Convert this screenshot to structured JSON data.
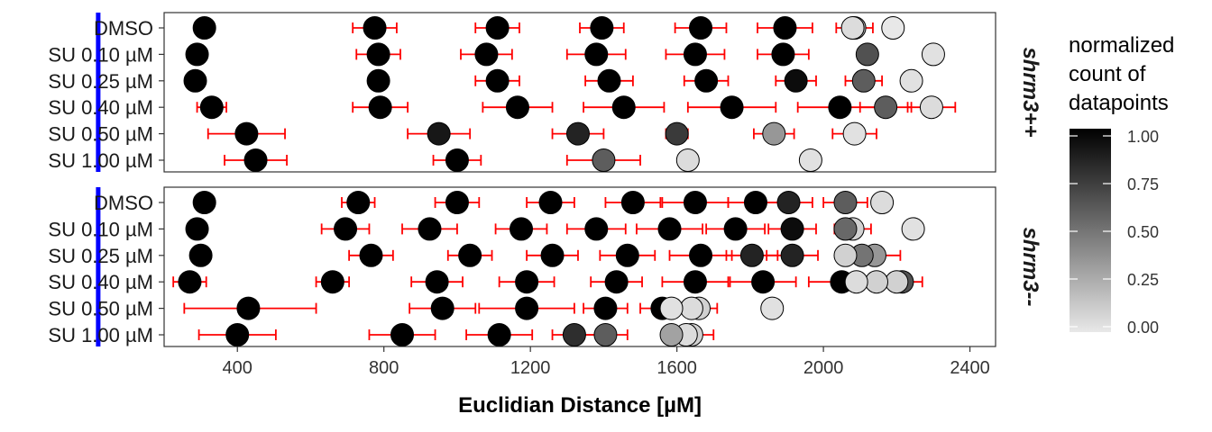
{
  "chart_data": {
    "type": "scatter",
    "xlabel": "Euclidian Distance [µM]",
    "xlim": [
      200,
      2470
    ],
    "xticks": [
      400,
      800,
      1200,
      1600,
      2000,
      2400
    ],
    "reference_line_x": 20,
    "reference_line_color": "#0000ff",
    "errorbar_color": "#ff0000",
    "categories": [
      "DMSO",
      "SU 0.10 µM",
      "SU 0.25 µM",
      "SU 0.40 µM",
      "SU 0.50 µM",
      "SU 1.00 µM"
    ],
    "legend": {
      "title_lines": [
        "normalized",
        "count of",
        "datapoints"
      ],
      "ticks": [
        "1.00",
        "0.75",
        "0.50",
        "0.25",
        "0.00"
      ],
      "tick_values": [
        1.0,
        0.75,
        0.5,
        0.25,
        0.0
      ],
      "color_low": "#e8e8e8",
      "color_high": "#000000"
    },
    "panels": [
      {
        "strip": "shrm3++",
        "rows": [
          {
            "category": "DMSO",
            "points": [
              {
                "x": 310,
                "c": 1.0
              },
              {
                "x": 775,
                "c": 1.0,
                "err": [
                  715,
                  835
                ]
              },
              {
                "x": 1110,
                "c": 1.0,
                "err": [
                  1050,
                  1170
                ]
              },
              {
                "x": 1395,
                "c": 1.0,
                "err": [
                  1335,
                  1455
                ]
              },
              {
                "x": 1665,
                "c": 1.0,
                "err": [
                  1595,
                  1735
                ]
              },
              {
                "x": 1895,
                "c": 1.0,
                "err": [
                  1820,
                  1970
                ]
              },
              {
                "x": 2085,
                "c": 0.25,
                "err": [
                  2035,
                  2135
                ]
              },
              {
                "x": 2080,
                "c": 0.05
              },
              {
                "x": 2190,
                "c": 0.0
              }
            ]
          },
          {
            "category": "SU 0.10 µM",
            "points": [
              {
                "x": 290,
                "c": 1.0
              },
              {
                "x": 785,
                "c": 1.0,
                "err": [
                  725,
                  845
                ]
              },
              {
                "x": 1080,
                "c": 1.0,
                "err": [
                  1010,
                  1150
                ]
              },
              {
                "x": 1380,
                "c": 1.0,
                "err": [
                  1300,
                  1460
                ]
              },
              {
                "x": 1650,
                "c": 1.0,
                "err": [
                  1570,
                  1730
                ]
              },
              {
                "x": 1890,
                "c": 1.0,
                "err": [
                  1820,
                  1960
                ]
              },
              {
                "x": 2120,
                "c": 0.65
              },
              {
                "x": 2300,
                "c": 0.03
              }
            ]
          },
          {
            "category": "SU 0.25 µM",
            "points": [
              {
                "x": 285,
                "c": 1.0
              },
              {
                "x": 785,
                "c": 1.0
              },
              {
                "x": 1110,
                "c": 1.0,
                "err": [
                  1050,
                  1170
                ]
              },
              {
                "x": 1415,
                "c": 1.0,
                "err": [
                  1350,
                  1480
                ]
              },
              {
                "x": 1680,
                "c": 1.0,
                "err": [
                  1620,
                  1740
                ]
              },
              {
                "x": 1925,
                "c": 0.95,
                "err": [
                  1870,
                  1980
                ]
              },
              {
                "x": 2110,
                "c": 0.6,
                "err": [
                  2060,
                  2160
                ]
              },
              {
                "x": 2240,
                "c": 0.03
              }
            ]
          },
          {
            "category": "SU 0.40 µM",
            "points": [
              {
                "x": 330,
                "c": 1.0,
                "err": [
                  290,
                  370
                ]
              },
              {
                "x": 790,
                "c": 1.0,
                "err": [
                  715,
                  865
                ]
              },
              {
                "x": 1165,
                "c": 1.0,
                "err": [
                  1070,
                  1260
                ]
              },
              {
                "x": 1455,
                "c": 1.0,
                "err": [
                  1345,
                  1565
                ]
              },
              {
                "x": 1750,
                "c": 1.0,
                "err": [
                  1630,
                  1870
                ]
              },
              {
                "x": 2045,
                "c": 1.0,
                "err": [
                  1930,
                  2160
                ]
              },
              {
                "x": 2170,
                "c": 0.6,
                "err": [
                  2100,
                  2240
                ]
              },
              {
                "x": 2295,
                "c": 0.05,
                "err": [
                  2230,
                  2360
                ]
              }
            ]
          },
          {
            "category": "SU 0.50 µM",
            "points": [
              {
                "x": 425,
                "c": 1.0,
                "err": [
                  320,
                  530
                ]
              },
              {
                "x": 950,
                "c": 0.9,
                "err": [
                  865,
                  1035
                ]
              },
              {
                "x": 1330,
                "c": 0.85,
                "err": [
                  1260,
                  1400
                ]
              },
              {
                "x": 1600,
                "c": 0.75,
                "err": [
                  1570,
                  1630
                ]
              },
              {
                "x": 1865,
                "c": 0.35,
                "err": [
                  1810,
                  1920
                ]
              },
              {
                "x": 2085,
                "c": 0.03,
                "err": [
                  2025,
                  2145
                ]
              }
            ]
          },
          {
            "category": "SU 1.00 µM",
            "points": [
              {
                "x": 450,
                "c": 1.0,
                "err": [
                  365,
                  535
                ]
              },
              {
                "x": 1000,
                "c": 1.0,
                "err": [
                  935,
                  1065
                ]
              },
              {
                "x": 1400,
                "c": 0.6,
                "err": [
                  1300,
                  1500
                ]
              },
              {
                "x": 1630,
                "c": 0.05
              },
              {
                "x": 1965,
                "c": 0.03
              }
            ]
          }
        ]
      },
      {
        "strip": "shrm3--",
        "rows": [
          {
            "category": "DMSO",
            "points": [
              {
                "x": 310,
                "c": 1.0
              },
              {
                "x": 730,
                "c": 1.0,
                "err": [
                  685,
                  775
                ]
              },
              {
                "x": 1000,
                "c": 1.0,
                "err": [
                  940,
                  1060
                ]
              },
              {
                "x": 1255,
                "c": 1.0,
                "err": [
                  1190,
                  1320
                ]
              },
              {
                "x": 1480,
                "c": 1.0,
                "err": [
                  1405,
                  1555
                ]
              },
              {
                "x": 1650,
                "c": 1.0,
                "err": [
                  1560,
                  1740
                ]
              },
              {
                "x": 1815,
                "c": 1.0,
                "err": [
                  1740,
                  1890
                ]
              },
              {
                "x": 1905,
                "c": 0.85,
                "err": [
                  1840,
                  1970
                ]
              },
              {
                "x": 2060,
                "c": 0.6,
                "err": [
                  2000,
                  2120
                ]
              },
              {
                "x": 2160,
                "c": 0.05
              }
            ]
          },
          {
            "category": "SU 0.10 µM",
            "points": [
              {
                "x": 290,
                "c": 1.0
              },
              {
                "x": 695,
                "c": 1.0,
                "err": [
                  630,
                  760
                ]
              },
              {
                "x": 925,
                "c": 1.0,
                "err": [
                  850,
                  1000
                ]
              },
              {
                "x": 1175,
                "c": 1.0,
                "err": [
                  1105,
                  1245
                ]
              },
              {
                "x": 1380,
                "c": 1.0,
                "err": [
                  1300,
                  1460
                ]
              },
              {
                "x": 1580,
                "c": 1.0,
                "err": [
                  1490,
                  1670
                ]
              },
              {
                "x": 1760,
                "c": 1.0,
                "err": [
                  1680,
                  1840
                ]
              },
              {
                "x": 1915,
                "c": 0.95,
                "err": [
                  1850,
                  1980
                ]
              },
              {
                "x": 2080,
                "c": 0.1,
                "err": [
                  2030,
                  2130
                ]
              },
              {
                "x": 2060,
                "c": 0.55
              },
              {
                "x": 2245,
                "c": 0.03
              }
            ]
          },
          {
            "category": "SU 0.25 µM",
            "points": [
              {
                "x": 300,
                "c": 1.0
              },
              {
                "x": 765,
                "c": 1.0,
                "err": [
                  705,
                  825
                ]
              },
              {
                "x": 1035,
                "c": 1.0,
                "err": [
                  975,
                  1095
                ]
              },
              {
                "x": 1260,
                "c": 1.0,
                "err": [
                  1190,
                  1330
                ]
              },
              {
                "x": 1465,
                "c": 1.0,
                "err": [
                  1390,
                  1540
                ]
              },
              {
                "x": 1665,
                "c": 1.0,
                "err": [
                  1580,
                  1750
                ]
              },
              {
                "x": 1805,
                "c": 0.85,
                "err": [
                  1735,
                  1875
                ]
              },
              {
                "x": 1915,
                "c": 0.85,
                "err": [
                  1845,
                  1985
                ]
              },
              {
                "x": 2140,
                "c": 0.35,
                "err": [
                  2070,
                  2210
                ]
              },
              {
                "x": 2105,
                "c": 0.5
              },
              {
                "x": 2060,
                "c": 0.1
              }
            ]
          },
          {
            "category": "SU 0.40 µM",
            "points": [
              {
                "x": 270,
                "c": 1.0,
                "err": [
                  225,
                  315
                ]
              },
              {
                "x": 660,
                "c": 1.0,
                "err": [
                  615,
                  705
                ]
              },
              {
                "x": 945,
                "c": 1.0,
                "err": [
                  875,
                  1015
                ]
              },
              {
                "x": 1190,
                "c": 1.0,
                "err": [
                  1115,
                  1265
                ]
              },
              {
                "x": 1435,
                "c": 1.0,
                "err": [
                  1365,
                  1505
                ]
              },
              {
                "x": 1650,
                "c": 1.0,
                "err": [
                  1560,
                  1740
                ]
              },
              {
                "x": 1835,
                "c": 1.0,
                "err": [
                  1745,
                  1925
                ]
              },
              {
                "x": 2050,
                "c": 1.0,
                "err": [
                  1960,
                  2140
                ]
              },
              {
                "x": 2215,
                "c": 0.65,
                "err": [
                  2160,
                  2270
                ]
              },
              {
                "x": 2200,
                "c": 0.1
              },
              {
                "x": 2145,
                "c": 0.1
              },
              {
                "x": 2090,
                "c": 0.05
              }
            ]
          },
          {
            "category": "SU 0.50 µM",
            "points": [
              {
                "x": 430,
                "c": 1.0,
                "err": [
                  255,
                  615
                ]
              },
              {
                "x": 960,
                "c": 1.0,
                "err": [
                  870,
                  1050
                ]
              },
              {
                "x": 1190,
                "c": 1.0,
                "err": [
                  1060,
                  1320
                ]
              },
              {
                "x": 1405,
                "c": 1.0,
                "err": [
                  1345,
                  1465
                ]
              },
              {
                "x": 1560,
                "c": 1.0,
                "err": [
                  1500,
                  1620
                ]
              },
              {
                "x": 1660,
                "c": 0.1,
                "err": [
                  1610,
                  1710
                ]
              },
              {
                "x": 1640,
                "c": 0.05
              },
              {
                "x": 1585,
                "c": 0.03
              },
              {
                "x": 1860,
                "c": 0.03
              }
            ]
          },
          {
            "category": "SU 1.00 µM",
            "points": [
              {
                "x": 400,
                "c": 1.0,
                "err": [
                  295,
                  505
                ]
              },
              {
                "x": 850,
                "c": 1.0,
                "err": [
                  760,
                  940
                ]
              },
              {
                "x": 1115,
                "c": 1.0,
                "err": [
                  1025,
                  1205
                ]
              },
              {
                "x": 1320,
                "c": 0.8,
                "err": [
                  1260,
                  1380
                ]
              },
              {
                "x": 1405,
                "c": 0.6,
                "err": [
                  1345,
                  1465
                ]
              },
              {
                "x": 1640,
                "c": 0.1,
                "err": [
                  1580,
                  1700
                ]
              },
              {
                "x": 1625,
                "c": 0.05
              },
              {
                "x": 1585,
                "c": 0.3
              }
            ]
          }
        ]
      }
    ]
  }
}
